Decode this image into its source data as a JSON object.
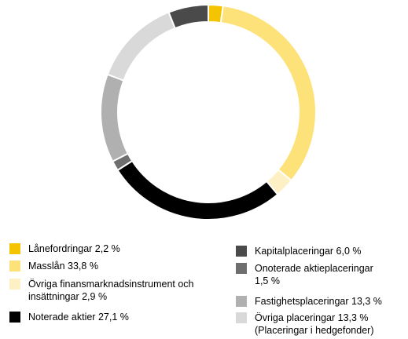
{
  "chart_data": {
    "type": "donut",
    "categories": [
      "Lånefordringar",
      "Masslån",
      "Övriga finansmarknadsinstrument och insättningar",
      "Noterade aktier",
      "Onoterade aktieplaceringar",
      "Fastighetsplaceringar",
      "Övriga placeringar",
      "Kapitalplaceringar"
    ],
    "values": [
      2.2,
      33.8,
      2.9,
      27.1,
      1.5,
      13.3,
      13.3,
      6.0
    ],
    "value_labels": [
      "2,2 %",
      "33,8 %",
      "2,9 %",
      "27,1 %",
      "1,5 %",
      "13,3 %",
      "13,3 %",
      "6,0 %"
    ],
    "colors": [
      "#f5c400",
      "#fde27a",
      "#fdf0c4",
      "#000000",
      "#6e6e6e",
      "#b0b0b0",
      "#d9d9d9",
      "#4a4a4a"
    ],
    "annotation": "(Placeringar i hedgefonder)"
  }
}
